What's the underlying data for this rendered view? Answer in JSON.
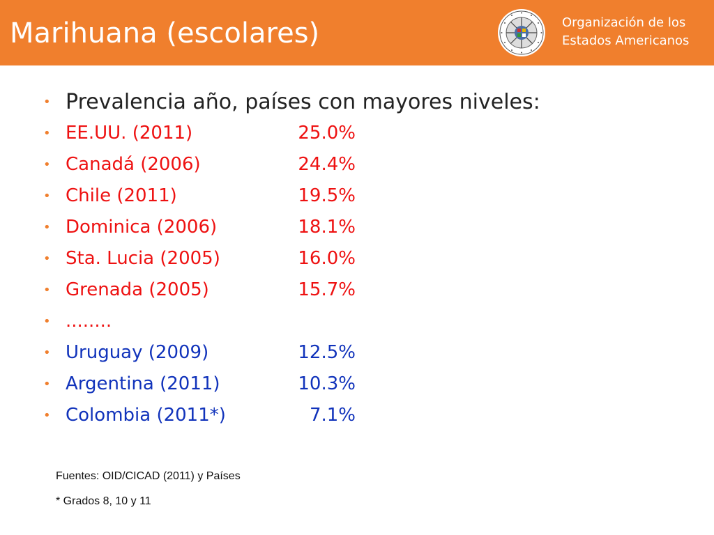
{
  "header": {
    "title": "Marihuana (escolares)",
    "org_line1": "Organización de los",
    "org_line2": "Estados Americanos",
    "seal_icon": "oas-seal-icon",
    "background_color": "#f07f2d"
  },
  "intro": "Prevalencia año, países con mayores niveles:",
  "countries": [
    {
      "label": "EE.UU.  (2011)",
      "value": "25.0%",
      "color": "red"
    },
    {
      "label": "Canadá (2006)",
      "value": "24.4%",
      "color": "red"
    },
    {
      "label": "Chile (2011)",
      "value": "19.5%",
      "color": "red"
    },
    {
      "label": "Dominica (2006)",
      "value": "18.1%",
      "color": "red"
    },
    {
      "label": "Sta. Lucia (2005)",
      "value": "16.0%",
      "color": "red"
    },
    {
      "label": "Grenada (2005)",
      "value": "15.7%",
      "color": "red"
    },
    {
      "label": "........",
      "value": "",
      "color": "red"
    },
    {
      "label": "Uruguay (2009)",
      "value": "12.5%",
      "color": "blue"
    },
    {
      "label": "Argentina (2011)",
      "value": "10.3%",
      "color": "blue"
    },
    {
      "label": "Colombia (2011*)",
      "value": "7.1%",
      "color": "blue"
    }
  ],
  "footer": {
    "sources": "Fuentes: OID/CICAD (2011) y Países",
    "note": "* Grados 8, 10 y 11"
  },
  "colors": {
    "accent": "#f07f2d",
    "highlight_red": "#ee1111",
    "highlight_blue": "#1133bb"
  }
}
